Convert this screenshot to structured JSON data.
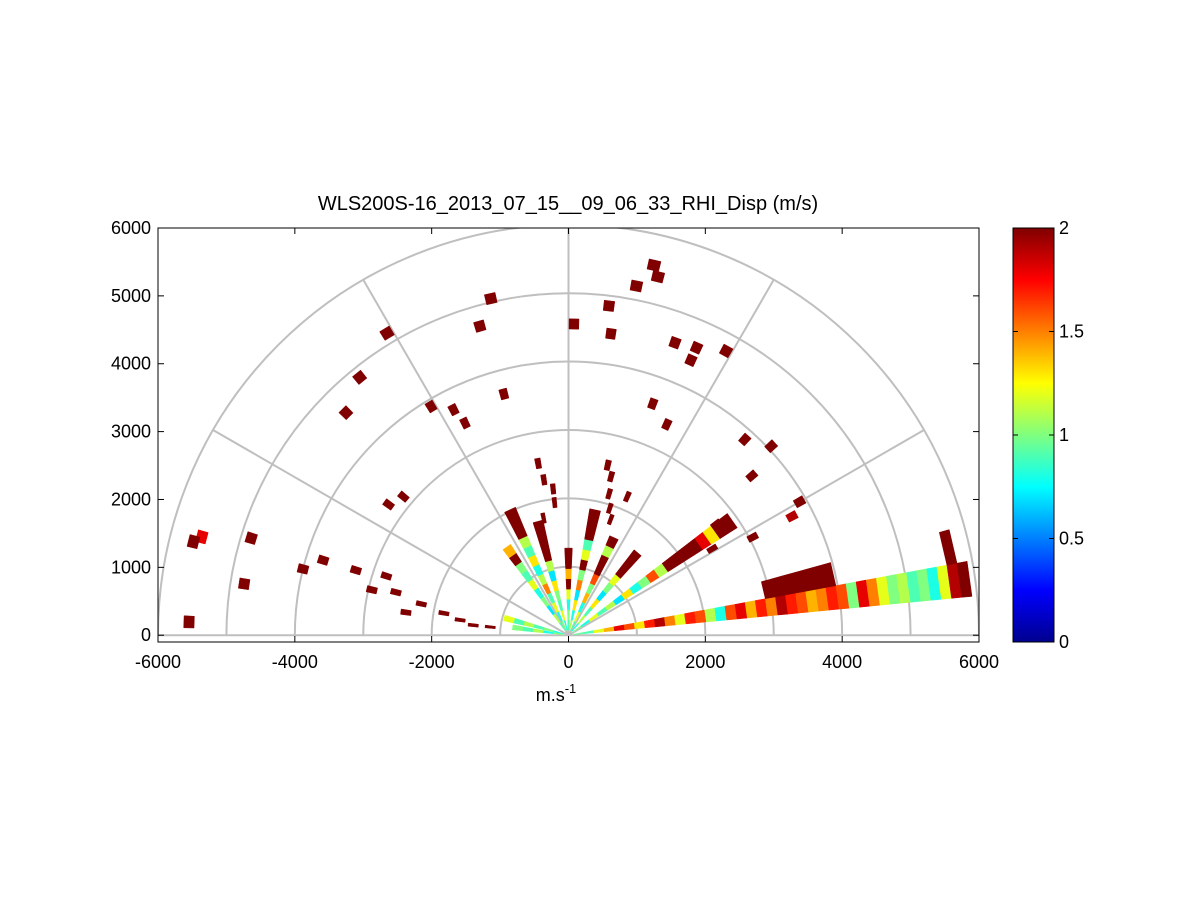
{
  "chart_data": {
    "type": "ppi-sector",
    "title": "WLS200S-16_2013_07_15__09_06_33_RHI_Disp (m/s)",
    "xlabel": "m.s",
    "xlabel_superscript": "-1",
    "ylabel": "",
    "xlim": [
      -6000,
      6000
    ],
    "ylim": [
      -100,
      6000
    ],
    "xticks": [
      -6000,
      -4000,
      -2000,
      0,
      2000,
      4000,
      6000
    ],
    "xtick_labels": [
      "-6000",
      "-4000",
      "-2000",
      "0",
      "2000",
      "4000",
      "6000"
    ],
    "yticks": [
      0,
      1000,
      2000,
      3000,
      4000,
      5000,
      6000
    ],
    "ytick_labels": [
      "0",
      "1000",
      "2000",
      "3000",
      "4000",
      "5000",
      "6000"
    ],
    "polar_grid": {
      "ring_radii": [
        1000,
        2000,
        3000,
        4000,
        5000,
        6000
      ],
      "spoke_angles_deg": [
        0,
        30,
        60,
        90,
        120,
        150,
        180
      ]
    },
    "colorbar": {
      "range": [
        0,
        2
      ],
      "ticks": [
        0,
        0.5,
        1,
        1.5,
        2
      ],
      "tick_labels": [
        "0",
        "0.5",
        "1",
        "1.5",
        "2"
      ],
      "colormap": "jet"
    },
    "gate_length_m": 150,
    "beams": [
      {
        "azimuth_deg": 8,
        "gates": [
          [
            150,
            0.95
          ],
          [
            300,
            0.9
          ],
          [
            450,
            1.2
          ],
          [
            600,
            1.4
          ],
          [
            750,
            1.8
          ],
          [
            900,
            1.6
          ],
          [
            1050,
            1.3
          ],
          [
            1200,
            1.7
          ],
          [
            1350,
            1.9
          ],
          [
            1500,
            1.5
          ],
          [
            1650,
            1.2
          ],
          [
            1800,
            1.7
          ],
          [
            1950,
            1.6
          ],
          [
            2100,
            1.1
          ],
          [
            2250,
            0.8
          ],
          [
            2400,
            1.6
          ],
          [
            2550,
            1.8
          ],
          [
            2700,
            1.4
          ],
          [
            2850,
            1.7
          ],
          [
            3000,
            1.5
          ],
          [
            3150,
            1.9
          ],
          [
            3300,
            1.7
          ],
          [
            3450,
            1.6
          ],
          [
            3600,
            1.4
          ],
          [
            3750,
            1.5
          ],
          [
            3900,
            1.7
          ],
          [
            4050,
            1.6
          ],
          [
            4200,
            1.0
          ],
          [
            4350,
            1.8
          ],
          [
            4500,
            1.5
          ],
          [
            4650,
            1.2
          ],
          [
            4800,
            1.0
          ],
          [
            4950,
            1.1
          ],
          [
            5100,
            0.9
          ],
          [
            5250,
            1.0
          ],
          [
            5400,
            0.8
          ],
          [
            5550,
            1.2
          ],
          [
            5700,
            1.9
          ],
          [
            5850,
            2.0
          ]
        ]
      },
      {
        "azimuth_deg": 13,
        "gates": [
          [
            3000,
            2.0
          ],
          [
            3150,
            2.0
          ],
          [
            3300,
            2.0
          ],
          [
            3450,
            2.0
          ],
          [
            3600,
            2.0
          ],
          [
            3750,
            2.0
          ],
          [
            3900,
            2.0
          ],
          [
            5700,
            2.0
          ]
        ]
      },
      {
        "azimuth_deg": 35,
        "gates": [
          [
            150,
            1.0
          ],
          [
            300,
            0.8
          ],
          [
            450,
            1.2
          ],
          [
            600,
            0.9
          ],
          [
            750,
            1.1
          ],
          [
            900,
            0.7
          ],
          [
            1050,
            1.3
          ],
          [
            1200,
            0.8
          ],
          [
            1350,
            1.0
          ],
          [
            1500,
            1.6
          ],
          [
            1650,
            1.1
          ],
          [
            1800,
            2.0
          ],
          [
            1950,
            2.0
          ],
          [
            2100,
            2.0
          ],
          [
            2250,
            2.0
          ],
          [
            2400,
            1.8
          ],
          [
            2550,
            1.3
          ],
          [
            2700,
            2.0
          ],
          [
            2850,
            2.0
          ]
        ]
      },
      {
        "azimuth_deg": 50,
        "gates": [
          [
            150,
            0.8
          ],
          [
            300,
            1.1
          ],
          [
            450,
            0.9
          ],
          [
            600,
            1.3
          ],
          [
            750,
            0.7
          ],
          [
            900,
            1.0
          ],
          [
            1050,
            1.2
          ],
          [
            1200,
            2.0
          ],
          [
            1350,
            2.0
          ],
          [
            1500,
            2.0
          ]
        ]
      },
      {
        "azimuth_deg": 65,
        "gates": [
          [
            150,
            0.9
          ],
          [
            300,
            1.2
          ],
          [
            450,
            0.8
          ],
          [
            600,
            1.4
          ],
          [
            750,
            1.0
          ],
          [
            900,
            1.6
          ],
          [
            1050,
            2.0
          ],
          [
            1200,
            2.0
          ],
          [
            1350,
            1.1
          ],
          [
            1500,
            2.0
          ]
        ]
      },
      {
        "azimuth_deg": 78,
        "gates": [
          [
            150,
            1.1
          ],
          [
            300,
            0.8
          ],
          [
            450,
            1.3
          ],
          [
            600,
            0.7
          ],
          [
            750,
            1.5
          ],
          [
            900,
            1.0
          ],
          [
            1050,
            2.0
          ],
          [
            1200,
            1.2
          ],
          [
            1350,
            0.9
          ],
          [
            1500,
            2.0
          ],
          [
            1650,
            2.0
          ],
          [
            1800,
            2.0
          ]
        ]
      },
      {
        "azimuth_deg": 90,
        "gates": [
          [
            150,
            0.9
          ],
          [
            300,
            1.0
          ],
          [
            450,
            0.8
          ],
          [
            600,
            1.2
          ],
          [
            750,
            2.0
          ],
          [
            900,
            1.4
          ],
          [
            1050,
            2.0
          ],
          [
            1200,
            2.0
          ]
        ]
      },
      {
        "azimuth_deg": 105,
        "gates": [
          [
            150,
            0.8
          ],
          [
            300,
            1.2
          ],
          [
            450,
            0.9
          ],
          [
            600,
            1.0
          ],
          [
            750,
            1.3
          ],
          [
            900,
            0.7
          ],
          [
            1050,
            1.1
          ],
          [
            1200,
            2.0
          ],
          [
            1350,
            2.0
          ],
          [
            1500,
            2.0
          ],
          [
            1650,
            2.0
          ]
        ]
      },
      {
        "azimuth_deg": 115,
        "gates": [
          [
            150,
            1.0
          ],
          [
            300,
            0.8
          ],
          [
            450,
            1.2
          ],
          [
            600,
            0.9
          ],
          [
            750,
            1.5
          ],
          [
            900,
            1.1
          ],
          [
            1050,
            0.8
          ],
          [
            1200,
            1.3
          ],
          [
            1350,
            0.9
          ],
          [
            1500,
            1.1
          ],
          [
            1650,
            2.0
          ],
          [
            1800,
            2.0
          ],
          [
            1950,
            2.0
          ]
        ]
      },
      {
        "azimuth_deg": 125,
        "gates": [
          [
            150,
            0.9
          ],
          [
            300,
            1.1
          ],
          [
            450,
            0.7
          ],
          [
            600,
            1.0
          ],
          [
            750,
            0.8
          ],
          [
            900,
            1.2
          ],
          [
            1050,
            0.9
          ],
          [
            1200,
            1.0
          ],
          [
            1350,
            2.0
          ],
          [
            1500,
            1.4
          ]
        ]
      },
      {
        "azimuth_deg": 165,
        "gates": [
          [
            150,
            0.8
          ],
          [
            300,
            1.0
          ],
          [
            450,
            0.9
          ],
          [
            600,
            1.1
          ],
          [
            750,
            0.9
          ],
          [
            900,
            1.2
          ]
        ]
      },
      {
        "azimuth_deg": 172,
        "gates": [
          [
            150,
            1.0
          ],
          [
            300,
            0.8
          ],
          [
            450,
            1.1
          ],
          [
            600,
            0.9
          ],
          [
            750,
            1.0
          ]
        ]
      }
    ],
    "scatter_gates": [
      [
        5550,
        178,
        2.0
      ],
      [
        5550,
        165,
        1.8
      ],
      [
        5650,
        166,
        2.0
      ],
      [
        4850,
        163,
        2.0
      ],
      [
        4800,
        171,
        2.0
      ],
      [
        4000,
        166,
        2.0
      ],
      [
        3750,
        163,
        2.0
      ],
      [
        3250,
        163,
        2.0
      ],
      [
        2950,
        167,
        2.0
      ],
      [
        2400,
        172,
        2.0
      ],
      [
        2200,
        168,
        2.0
      ],
      [
        1850,
        170,
        2.0
      ],
      [
        1600,
        172,
        2.0
      ],
      [
        1400,
        174,
        2.0
      ],
      [
        1150,
        174,
        2.0
      ],
      [
        5150,
        121,
        2.0
      ],
      [
        4850,
        129,
        2.0
      ],
      [
        4600,
        135,
        2.0
      ],
      [
        3900,
        121,
        2.0
      ],
      [
        3700,
        117,
        2.0
      ],
      [
        3450,
        116,
        2.0
      ],
      [
        3150,
        140,
        2.0
      ],
      [
        2800,
        162,
        2.0
      ],
      [
        2600,
        166,
        2.0
      ],
      [
        3250,
        144,
        2.0
      ],
      [
        5050,
        103,
        2.0
      ],
      [
        4700,
        106,
        2.0
      ],
      [
        3650,
        105,
        2.0
      ],
      [
        2550,
        100,
        2.0
      ],
      [
        2300,
        99,
        2.0
      ],
      [
        2150,
        96,
        2.0
      ],
      [
        1950,
        96,
        2.0
      ],
      [
        1750,
        102,
        2.0
      ],
      [
        5550,
        77,
        2.0
      ],
      [
        5400,
        76,
        2.0
      ],
      [
        5200,
        79,
        2.0
      ],
      [
        4850,
        83,
        2.0
      ],
      [
        4550,
        70,
        2.0
      ],
      [
        4400,
        66,
        2.0
      ],
      [
        4600,
        66,
        2.0
      ],
      [
        4750,
        61,
        2.0
      ],
      [
        4550,
        89,
        2.0
      ],
      [
        4450,
        82,
        2.0
      ],
      [
        4050,
        43,
        2.0
      ],
      [
        3850,
        48,
        2.0
      ],
      [
        3900,
        30,
        2.0
      ],
      [
        3600,
        70,
        2.0
      ],
      [
        3400,
        65,
        2.0
      ],
      [
        2550,
        77,
        2.0
      ],
      [
        2400,
        75,
        2.0
      ],
      [
        2150,
        74,
        2.0
      ],
      [
        1950,
        72,
        2.0
      ],
      [
        1800,
        70,
        2.0
      ],
      [
        2200,
        67,
        2.0
      ],
      [
        3550,
        41,
        2.0
      ],
      [
        3050,
        28,
        2.0
      ],
      [
        2700,
        37,
        2.0
      ],
      [
        2450,
        31,
        2.0
      ],
      [
        3700,
        28,
        1.9
      ]
    ]
  }
}
